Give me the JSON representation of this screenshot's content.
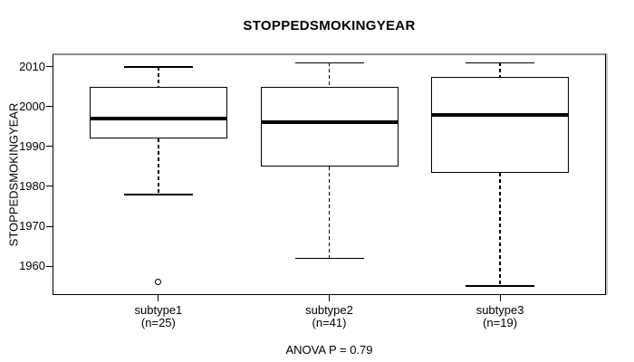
{
  "figure": {
    "title": "STOPPEDSMOKINGYEAR",
    "y_axis_label": "STOPPEDSMOKINGYEAR",
    "annotation": "ANOVA P = 0.79"
  },
  "colors": {
    "line": "#000000",
    "background": "#ffffff",
    "frame_top_edge": "#8e8e8e"
  },
  "chart_data": {
    "type": "boxplot",
    "title": "STOPPEDSMOKINGYEAR",
    "xlabel": "",
    "ylabel": "STOPPEDSMOKINGYEAR",
    "ylim": [
      1952.76,
      2013.24
    ],
    "y_ticks": [
      1960,
      1970,
      1980,
      1990,
      2000,
      2010
    ],
    "grid": false,
    "legend": null,
    "categories": [
      "subtype1",
      "subtype2",
      "subtype3"
    ],
    "groups": [
      {
        "label": "subtype1",
        "n_label": "(n=25)",
        "n": 25,
        "lower_whisker": 1978,
        "q1": 1992,
        "median": 1997,
        "q3": 2005,
        "upper_whisker": 2010,
        "outliers": [
          1956
        ]
      },
      {
        "label": "subtype2",
        "n_label": "(n=41)",
        "n": 41,
        "lower_whisker": 1962,
        "q1": 1985,
        "median": 1996,
        "q3": 2005,
        "upper_whisker": 2011,
        "outliers": []
      },
      {
        "label": "subtype3",
        "n_label": "(n=19)",
        "n": 19,
        "lower_whisker": 1955,
        "q1": 1983.5,
        "median": 1998,
        "q3": 2007.5,
        "upper_whisker": 2011,
        "outliers": []
      }
    ],
    "annotation": "ANOVA P = 0.79",
    "anova_p": 0.79
  }
}
